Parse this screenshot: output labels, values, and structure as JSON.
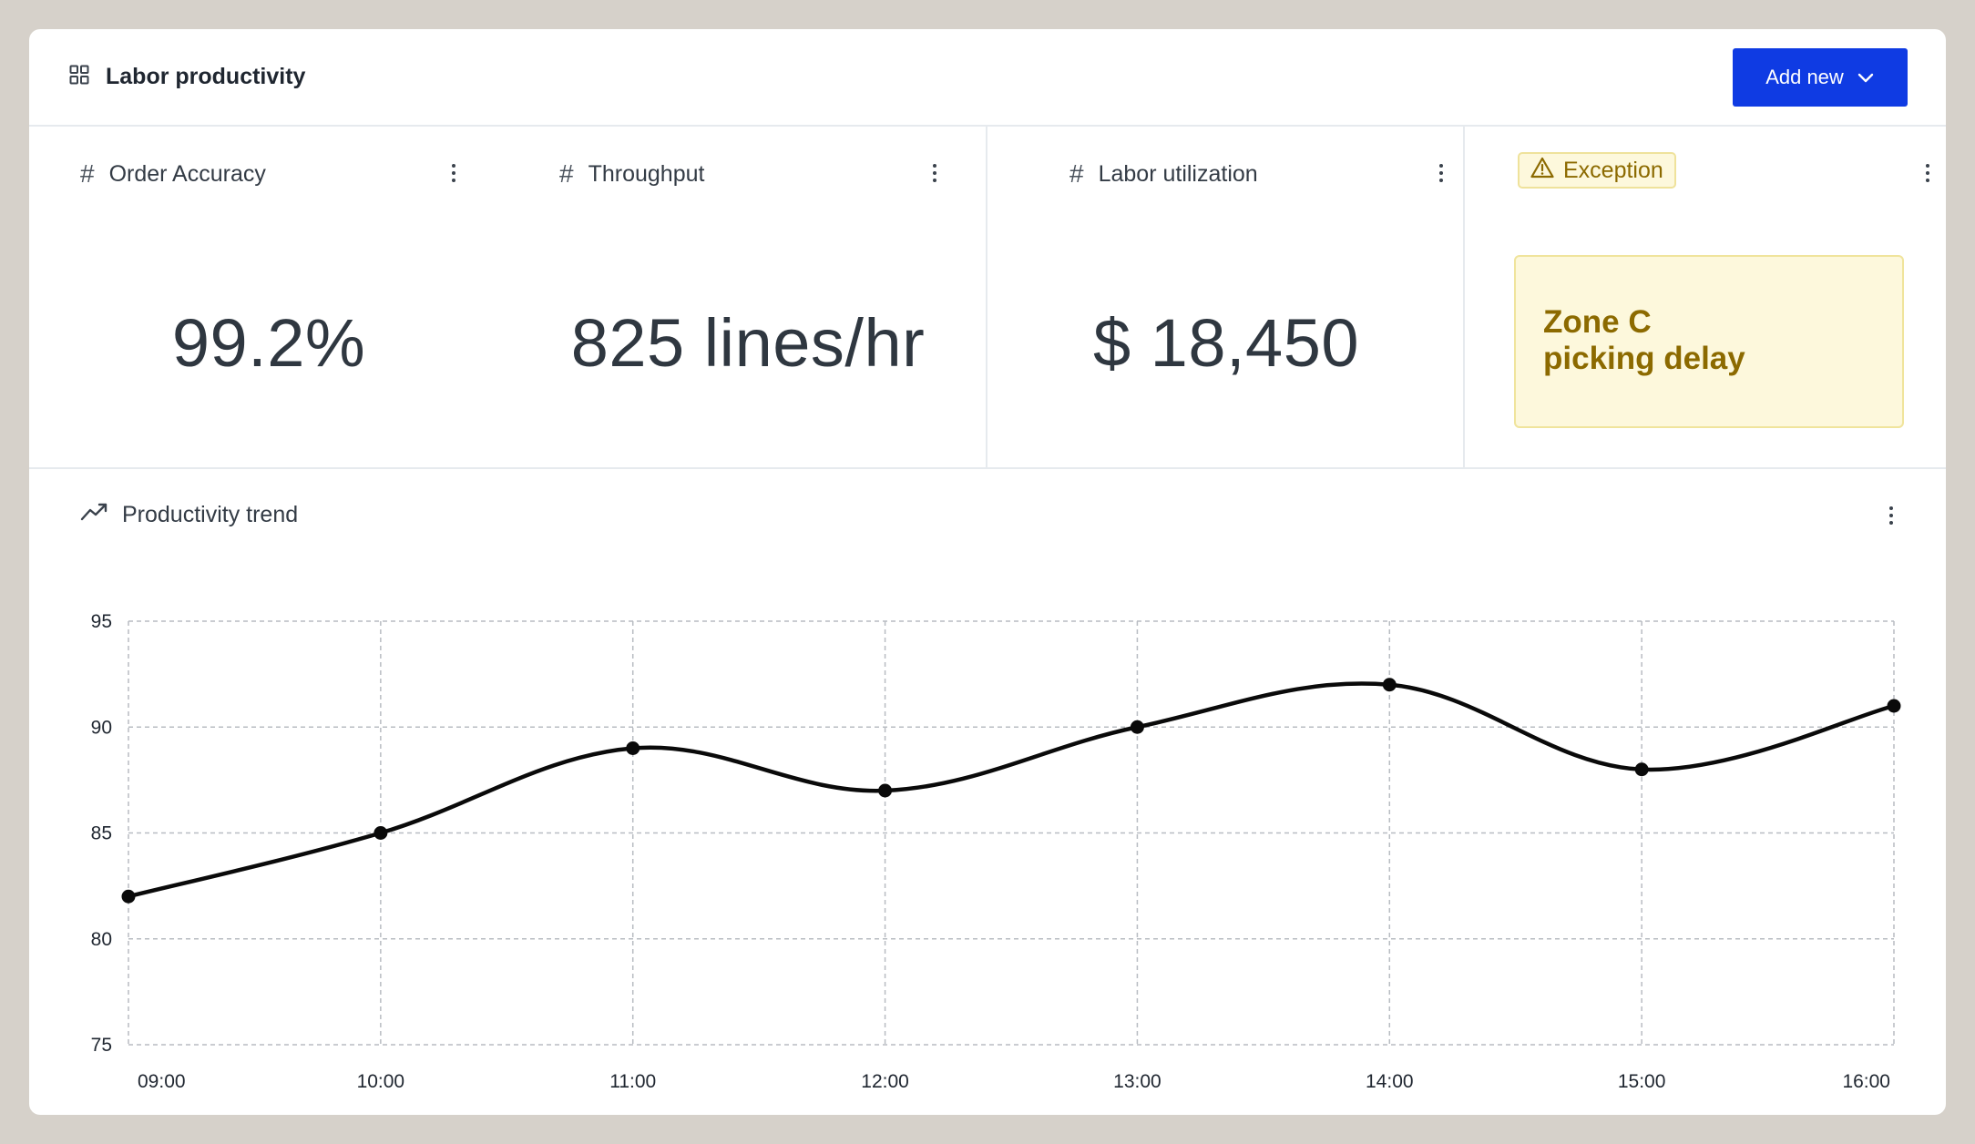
{
  "header": {
    "title": "Labor productivity",
    "add_button_label": "Add new"
  },
  "kpis": [
    {
      "label": "Order Accuracy",
      "value": "99.2%"
    },
    {
      "label": "Throughput",
      "value": "825 lines/hr"
    },
    {
      "label": "Labor utilization",
      "value": "$ 18,450"
    }
  ],
  "exception": {
    "badge_label": "Exception",
    "message_line1": "Zone C",
    "message_line2": "picking delay"
  },
  "chart_section": {
    "title": "Productivity trend"
  },
  "colors": {
    "accent": "#0f3be3",
    "warning_text": "#8c6a00",
    "warning_bg": "#fdf8dc"
  },
  "chart_data": {
    "type": "line",
    "title": "Productivity trend",
    "x": [
      "09:00",
      "10:00",
      "11:00",
      "12:00",
      "13:00",
      "14:00",
      "15:00",
      "16:00"
    ],
    "series": [
      {
        "values": [
          82,
          85,
          89,
          87,
          90,
          92,
          88,
          91
        ]
      }
    ],
    "yticks": [
      75,
      80,
      85,
      90,
      95
    ],
    "ylim": [
      75,
      95
    ],
    "grid": true,
    "curve": "smooth",
    "markers": true
  }
}
